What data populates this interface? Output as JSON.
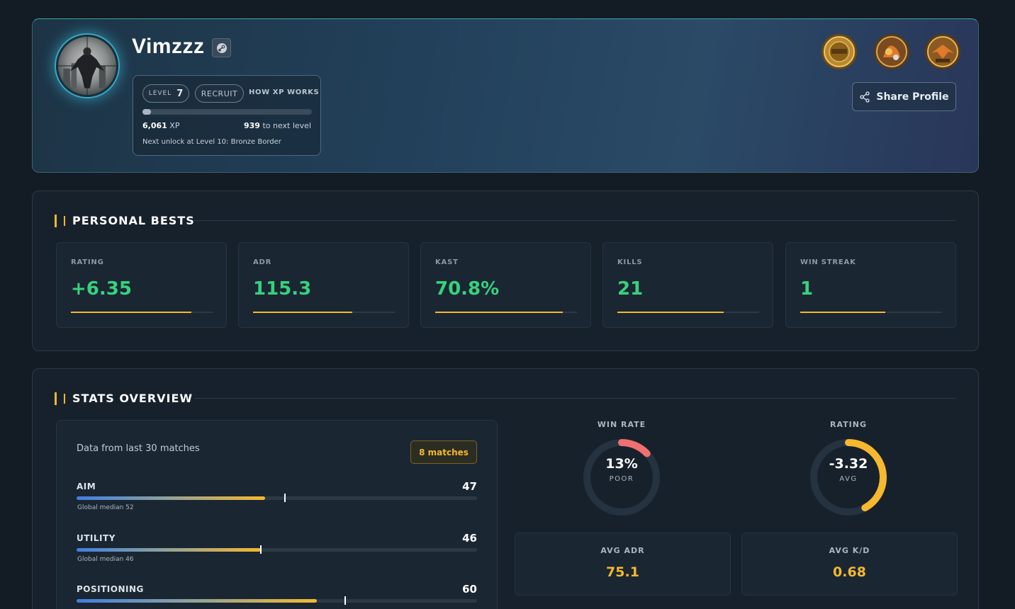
{
  "profile": {
    "username": "Vimzzz",
    "steam_icon": "steam-icon",
    "level_label": "LEVEL",
    "level": "7",
    "rank": "RECRUIT",
    "how_xp": "HOW XP WORKS",
    "xp_value": "6,061",
    "xp_unit": "XP",
    "xp_progress": 0.05,
    "next_level_value": "939",
    "next_level_text": "to next level",
    "next_unlock": "Next unlock at Level 10: Bronze Border",
    "medals": [
      "season-1-medal",
      "fire-medal",
      "eagle-medal"
    ],
    "share_label": "Share Profile",
    "share_icon": "share-icon"
  },
  "personal_bests": {
    "title": "PERSONAL BESTS",
    "items": [
      {
        "label": "RATING",
        "value": "+6.35",
        "progress": 0.85
      },
      {
        "label": "ADR",
        "value": "115.3",
        "progress": 0.7
      },
      {
        "label": "KAST",
        "value": "70.8%",
        "progress": 0.9
      },
      {
        "label": "KILLS",
        "value": "21",
        "progress": 0.75
      },
      {
        "label": "WIN STREAK",
        "value": "1",
        "progress": 0.6
      }
    ]
  },
  "stats_overview": {
    "title": "STATS OVERVIEW",
    "data_from": "Data from last 30 matches",
    "matches_badge": "8 matches",
    "skills": [
      {
        "name": "AIM",
        "value": "47",
        "score": 47,
        "median_label": "Global median 52",
        "median": 52
      },
      {
        "name": "UTILITY",
        "value": "46",
        "score": 46,
        "median_label": "Global median 46",
        "median": 46
      },
      {
        "name": "POSITIONING",
        "value": "60",
        "score": 60,
        "median": 67
      }
    ],
    "win_rate": {
      "title": "WIN RATE",
      "value": "13%",
      "sub": "POOR",
      "fraction": 0.13,
      "color": "#f07070"
    },
    "rating": {
      "title": "RATING",
      "value": "-3.32",
      "sub": "AVG",
      "fraction": 0.42,
      "color": "#f5b82e"
    },
    "avg_adr": {
      "label": "AVG ADR",
      "value": "75.1"
    },
    "avg_kd": {
      "label": "AVG K/D",
      "value": "0.68"
    }
  }
}
